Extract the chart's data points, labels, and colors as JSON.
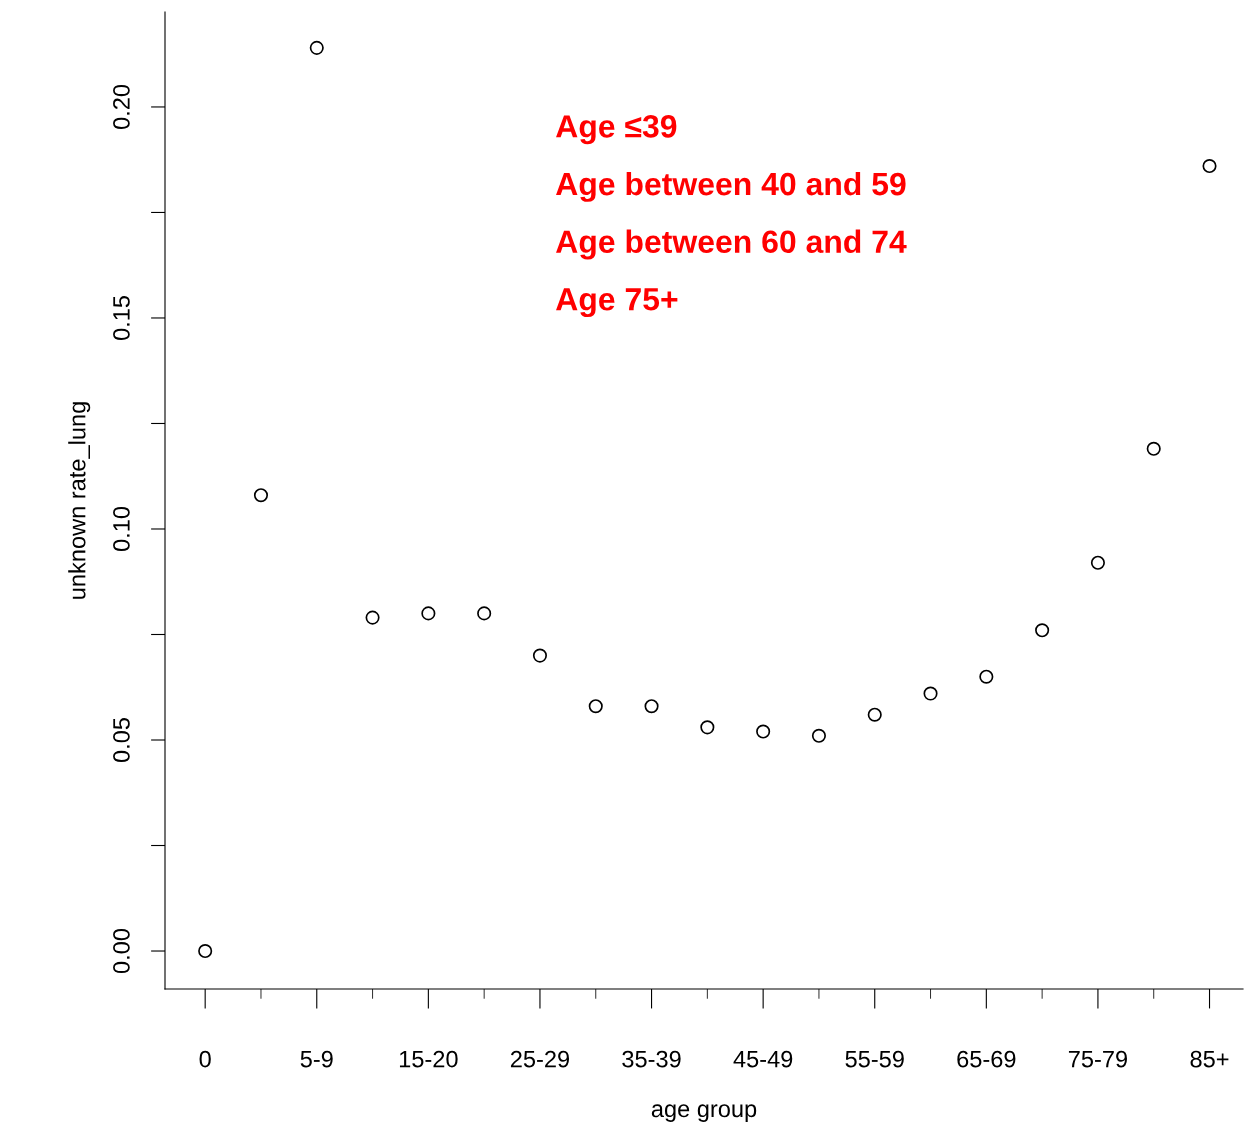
{
  "chart_data": {
    "type": "scatter",
    "xlabel": "age group",
    "ylabel": "unknown rate_lung",
    "categories": [
      "0",
      null,
      "5-9",
      null,
      "15-20",
      null,
      "25-29",
      null,
      "35-39",
      null,
      "45-49",
      null,
      "55-59",
      null,
      "65-69",
      null,
      "75-79",
      null,
      "85+"
    ],
    "series": [
      {
        "color": "#000000",
        "values": [
          0.0,
          0.108,
          0.214,
          0.079,
          0.08,
          0.08,
          0.07,
          0.058,
          0.058,
          0.053,
          0.052,
          0.051,
          0.056,
          0.061,
          0.065,
          0.076,
          0.092,
          0.119,
          0.186
        ]
      }
    ],
    "ylim": [
      -0.009,
      0.2225
    ],
    "yticks": [
      {
        "value": 0,
        "label": "0.00"
      },
      {
        "value": 0.025,
        "label": null
      },
      {
        "value": 0.05,
        "label": "0.05"
      },
      {
        "value": 0.075,
        "label": null
      },
      {
        "value": 0.1,
        "label": "0.10"
      },
      {
        "value": 0.125,
        "label": null
      },
      {
        "value": 0.15,
        "label": "0.15"
      },
      {
        "value": 0.175,
        "label": null
      },
      {
        "value": 0.2,
        "label": "0.20"
      }
    ],
    "marker": "circle",
    "grid": false,
    "legend": false,
    "annotations": [
      "Age ≤39",
      "Age between 40 and 59",
      "Age between 60 and 74",
      "Age 75+"
    ]
  }
}
